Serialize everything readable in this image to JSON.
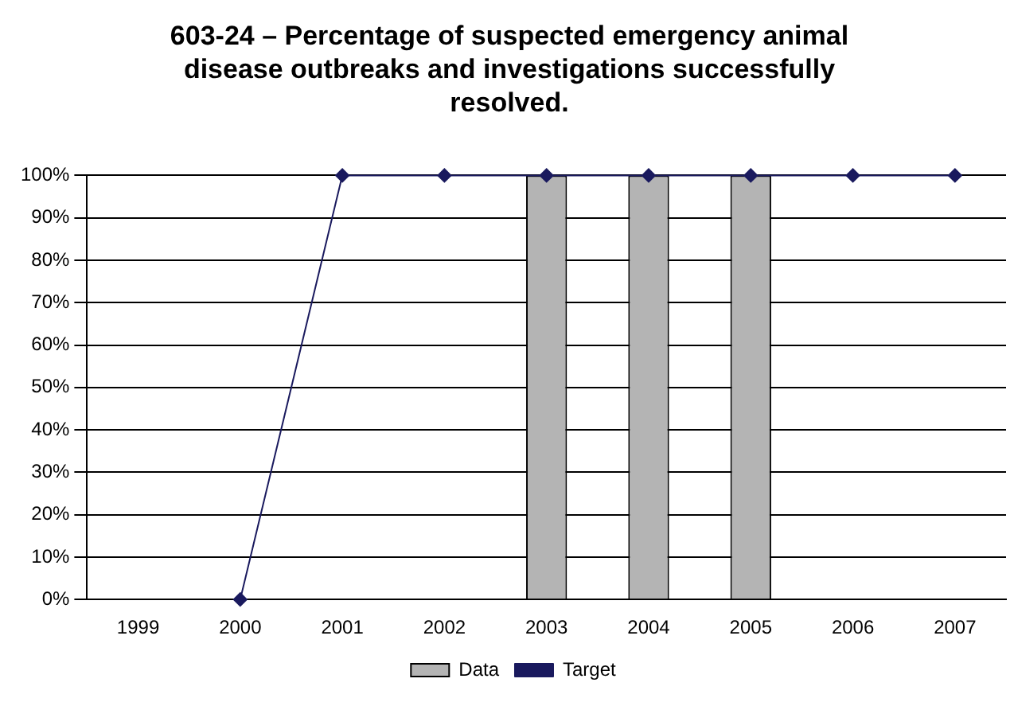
{
  "chart_data": {
    "type": "bar",
    "title": "603-24 – Percentage of suspected emergency animal disease outbreaks and investigations successfully resolved.",
    "categories": [
      "1999",
      "2000",
      "2001",
      "2002",
      "2003",
      "2004",
      "2005",
      "2006",
      "2007"
    ],
    "series": [
      {
        "name": "Data",
        "color": "#b4b4b4",
        "values": [
          null,
          null,
          null,
          null,
          100,
          100,
          100,
          null,
          null
        ]
      },
      {
        "name": "Target",
        "type": "line",
        "color": "#1a1a5e",
        "marker": "diamond",
        "values": [
          null,
          0,
          100,
          100,
          100,
          100,
          100,
          100,
          100
        ]
      }
    ],
    "ylim": [
      0,
      100
    ],
    "yticks": [
      {
        "value": 0,
        "label": "0%"
      },
      {
        "value": 10,
        "label": "10%"
      },
      {
        "value": 20,
        "label": "20%"
      },
      {
        "value": 30,
        "label": "30%"
      },
      {
        "value": 40,
        "label": "40%"
      },
      {
        "value": 50,
        "label": "50%"
      },
      {
        "value": 60,
        "label": "60%"
      },
      {
        "value": 70,
        "label": "70%"
      },
      {
        "value": 80,
        "label": "80%"
      },
      {
        "value": 90,
        "label": "90%"
      },
      {
        "value": 100,
        "label": "100%"
      }
    ],
    "grid": "y",
    "legend": "bottom"
  }
}
